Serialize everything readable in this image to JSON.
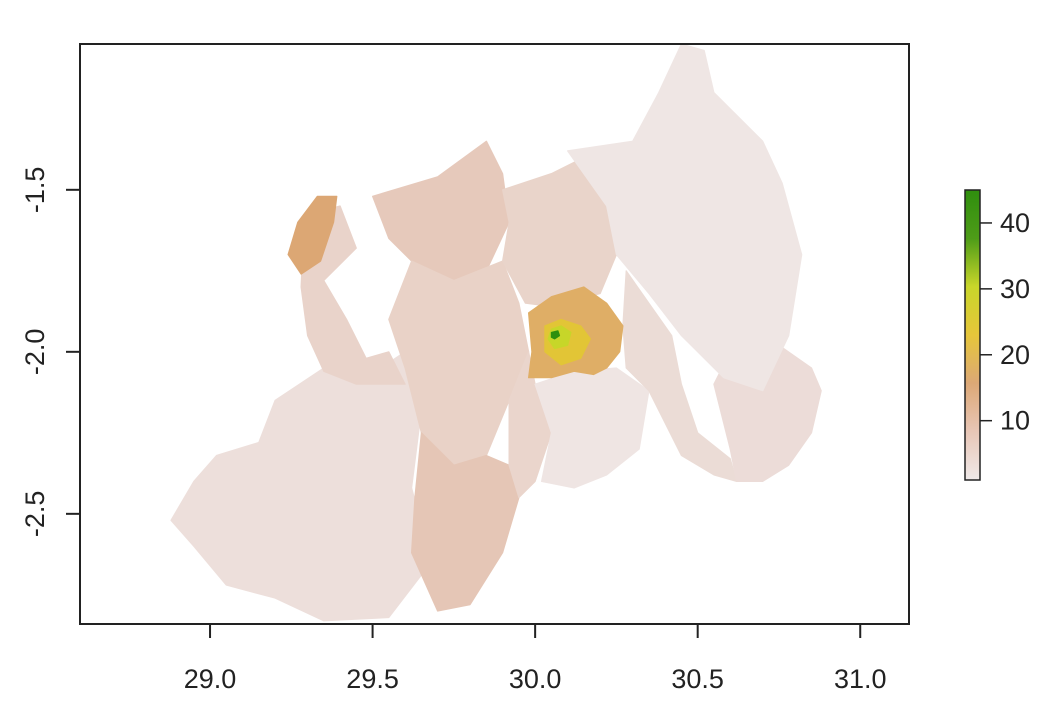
{
  "chart_data": {
    "type": "heatmap",
    "title": "",
    "xlabel": "",
    "ylabel": "",
    "xlim": [
      28.6,
      31.15
    ],
    "ylim": [
      -2.84,
      -1.05
    ],
    "x_ticks": [
      {
        "value": 29.0,
        "label": "29.0"
      },
      {
        "value": 29.5,
        "label": "29.5"
      },
      {
        "value": 30.0,
        "label": "30.0"
      },
      {
        "value": 30.5,
        "label": "30.5"
      },
      {
        "value": 31.0,
        "label": "31.0"
      }
    ],
    "y_ticks": [
      {
        "value": -1.5,
        "label": "-1.5"
      },
      {
        "value": -2.0,
        "label": "-2.0"
      },
      {
        "value": -2.5,
        "label": "-2.5"
      }
    ],
    "legend": {
      "placement": "right",
      "range": [
        1,
        45
      ],
      "colors": [
        "#efe9e9",
        "#e8c6b6",
        "#dca876",
        "#e6c63a",
        "#c9d62a",
        "#4e9c18",
        "#2f8f0e"
      ],
      "ticks": [
        {
          "value": 10,
          "label": "10"
        },
        {
          "value": 20,
          "label": "20"
        },
        {
          "value": 30,
          "label": "30"
        },
        {
          "value": 40,
          "label": "40"
        }
      ]
    },
    "regions": [
      {
        "name": "",
        "value": 4,
        "color": "#eddfdb",
        "lonlat": [
          [
            29.02,
            -2.32
          ],
          [
            29.15,
            -2.28
          ],
          [
            29.2,
            -2.15
          ],
          [
            29.35,
            -2.05
          ],
          [
            29.45,
            -2.1
          ],
          [
            29.6,
            -2.0
          ],
          [
            29.65,
            -2.18
          ],
          [
            29.62,
            -2.42
          ],
          [
            29.68,
            -2.65
          ],
          [
            29.55,
            -2.82
          ],
          [
            29.35,
            -2.83
          ],
          [
            29.2,
            -2.76
          ],
          [
            29.05,
            -2.72
          ],
          [
            28.95,
            -2.6
          ],
          [
            28.88,
            -2.52
          ],
          [
            28.95,
            -2.4
          ]
        ]
      },
      {
        "name": "",
        "value": 7,
        "color": "#e9d3ca",
        "lonlat": [
          [
            29.29,
            -1.58
          ],
          [
            29.4,
            -1.55
          ],
          [
            29.45,
            -1.68
          ],
          [
            29.35,
            -1.78
          ],
          [
            29.42,
            -1.9
          ],
          [
            29.48,
            -2.02
          ],
          [
            29.55,
            -2.0
          ],
          [
            29.6,
            -2.1
          ],
          [
            29.45,
            -2.1
          ],
          [
            29.35,
            -2.06
          ],
          [
            29.3,
            -1.95
          ],
          [
            29.28,
            -1.8
          ]
        ]
      },
      {
        "name": "",
        "value": 8,
        "color": "#e6c9bb",
        "lonlat": [
          [
            29.5,
            -1.52
          ],
          [
            29.7,
            -1.46
          ],
          [
            29.85,
            -1.35
          ],
          [
            29.9,
            -1.45
          ],
          [
            29.92,
            -1.6
          ],
          [
            29.85,
            -1.75
          ],
          [
            29.75,
            -1.78
          ],
          [
            29.62,
            -1.72
          ],
          [
            29.55,
            -1.65
          ]
        ]
      },
      {
        "name": "",
        "value": 6,
        "color": "#e9d2c7",
        "lonlat": [
          [
            29.62,
            -1.72
          ],
          [
            29.75,
            -1.78
          ],
          [
            29.9,
            -1.72
          ],
          [
            29.95,
            -1.85
          ],
          [
            29.98,
            -2.0
          ],
          [
            29.92,
            -2.15
          ],
          [
            29.85,
            -2.32
          ],
          [
            29.75,
            -2.35
          ],
          [
            29.65,
            -2.25
          ],
          [
            29.6,
            -2.05
          ],
          [
            29.55,
            -1.9
          ]
        ]
      },
      {
        "name": "",
        "value": 8,
        "color": "#e5c6b6",
        "lonlat": [
          [
            29.65,
            -2.25
          ],
          [
            29.75,
            -2.35
          ],
          [
            29.85,
            -2.32
          ],
          [
            29.92,
            -2.35
          ],
          [
            29.95,
            -2.45
          ],
          [
            29.9,
            -2.62
          ],
          [
            29.8,
            -2.78
          ],
          [
            29.7,
            -2.8
          ],
          [
            29.62,
            -2.62
          ],
          [
            29.63,
            -2.45
          ]
        ]
      },
      {
        "name": "",
        "value": 6,
        "color": "#e9d4ca",
        "lonlat": [
          [
            29.9,
            -1.5
          ],
          [
            30.05,
            -1.45
          ],
          [
            30.15,
            -1.4
          ],
          [
            30.22,
            -1.55
          ],
          [
            30.25,
            -1.7
          ],
          [
            30.2,
            -1.82
          ],
          [
            30.05,
            -1.86
          ],
          [
            29.97,
            -1.85
          ],
          [
            29.9,
            -1.72
          ],
          [
            29.92,
            -1.6
          ]
        ]
      },
      {
        "name": "",
        "value": 6,
        "color": "#ead5cc",
        "lonlat": [
          [
            29.92,
            -2.15
          ],
          [
            29.98,
            -2.0
          ],
          [
            30.0,
            -2.1
          ],
          [
            30.05,
            -2.25
          ],
          [
            30.0,
            -2.4
          ],
          [
            29.95,
            -2.45
          ],
          [
            29.92,
            -2.35
          ]
        ]
      },
      {
        "name": "",
        "value": 3,
        "color": "#efe5e3",
        "lonlat": [
          [
            30.0,
            -2.1
          ],
          [
            30.12,
            -2.06
          ],
          [
            30.25,
            -2.05
          ],
          [
            30.35,
            -2.12
          ],
          [
            30.32,
            -2.3
          ],
          [
            30.22,
            -2.38
          ],
          [
            30.12,
            -2.42
          ],
          [
            30.02,
            -2.4
          ],
          [
            30.05,
            -2.25
          ]
        ]
      },
      {
        "name": "",
        "value": 5,
        "color": "#ebdcd6",
        "lonlat": [
          [
            30.28,
            -1.75
          ],
          [
            30.35,
            -1.85
          ],
          [
            30.42,
            -1.95
          ],
          [
            30.45,
            -2.1
          ],
          [
            30.5,
            -2.25
          ],
          [
            30.6,
            -2.33
          ],
          [
            30.62,
            -2.4
          ],
          [
            30.55,
            -2.38
          ],
          [
            30.45,
            -2.32
          ],
          [
            30.35,
            -2.12
          ],
          [
            30.28,
            -2.05
          ],
          [
            30.27,
            -1.92
          ]
        ]
      },
      {
        "name": "",
        "value": 4,
        "color": "#ecdcd8",
        "lonlat": [
          [
            30.6,
            -2.0
          ],
          [
            30.75,
            -1.98
          ],
          [
            30.85,
            -2.05
          ],
          [
            30.88,
            -2.12
          ],
          [
            30.85,
            -2.25
          ],
          [
            30.78,
            -2.35
          ],
          [
            30.7,
            -2.4
          ],
          [
            30.62,
            -2.4
          ],
          [
            30.6,
            -2.3
          ],
          [
            30.55,
            -2.1
          ]
        ]
      },
      {
        "name": "",
        "value": 3,
        "color": "#efe6e4",
        "lonlat": [
          [
            30.1,
            -1.38
          ],
          [
            30.3,
            -1.35
          ],
          [
            30.38,
            -1.2
          ],
          [
            30.45,
            -1.05
          ],
          [
            30.52,
            -1.07
          ],
          [
            30.55,
            -1.2
          ],
          [
            30.7,
            -1.35
          ],
          [
            30.76,
            -1.48
          ],
          [
            30.82,
            -1.7
          ],
          [
            30.78,
            -1.95
          ],
          [
            30.7,
            -2.12
          ],
          [
            30.58,
            -2.08
          ],
          [
            30.45,
            -1.95
          ],
          [
            30.35,
            -1.82
          ],
          [
            30.25,
            -1.7
          ],
          [
            30.22,
            -1.55
          ]
        ]
      },
      {
        "name": "",
        "value": 14,
        "color": "#dca774",
        "lonlat": [
          [
            29.33,
            -1.52
          ],
          [
            29.39,
            -1.52
          ],
          [
            29.38,
            -1.6
          ],
          [
            29.34,
            -1.72
          ],
          [
            29.28,
            -1.76
          ],
          [
            29.24,
            -1.7
          ],
          [
            29.27,
            -1.6
          ]
        ]
      },
      {
        "name": "",
        "value": 14,
        "color": "#dfae66",
        "lonlat": [
          [
            29.98,
            -1.88
          ],
          [
            30.05,
            -1.83
          ],
          [
            30.15,
            -1.8
          ],
          [
            30.22,
            -1.85
          ],
          [
            30.27,
            -1.92
          ],
          [
            30.26,
            -2.0
          ],
          [
            30.22,
            -2.05
          ],
          [
            30.18,
            -2.07
          ],
          [
            30.12,
            -2.06
          ],
          [
            30.05,
            -2.08
          ],
          [
            29.98,
            -2.08
          ],
          [
            29.99,
            -2.0
          ]
        ]
      },
      {
        "name": "",
        "value": 20,
        "color": "#e2c536",
        "lonlat": [
          [
            30.03,
            -1.92
          ],
          [
            30.08,
            -1.9
          ],
          [
            30.14,
            -1.92
          ],
          [
            30.17,
            -1.96
          ],
          [
            30.14,
            -2.02
          ],
          [
            30.08,
            -2.04
          ],
          [
            30.03,
            -2.0
          ]
        ]
      },
      {
        "name": "",
        "value": 28,
        "color": "#c7d629",
        "lonlat": [
          [
            30.05,
            -1.93
          ],
          [
            30.08,
            -1.92
          ],
          [
            30.11,
            -1.94
          ],
          [
            30.1,
            -1.98
          ],
          [
            30.06,
            -1.99
          ],
          [
            30.04,
            -1.96
          ]
        ]
      },
      {
        "name": "",
        "value": 45,
        "color": "#2f8f0e",
        "lonlat": [
          [
            30.05,
            -1.94
          ],
          [
            30.07,
            -1.935
          ],
          [
            30.075,
            -1.95
          ],
          [
            30.06,
            -1.96
          ],
          [
            30.05,
            -1.955
          ]
        ]
      }
    ]
  }
}
